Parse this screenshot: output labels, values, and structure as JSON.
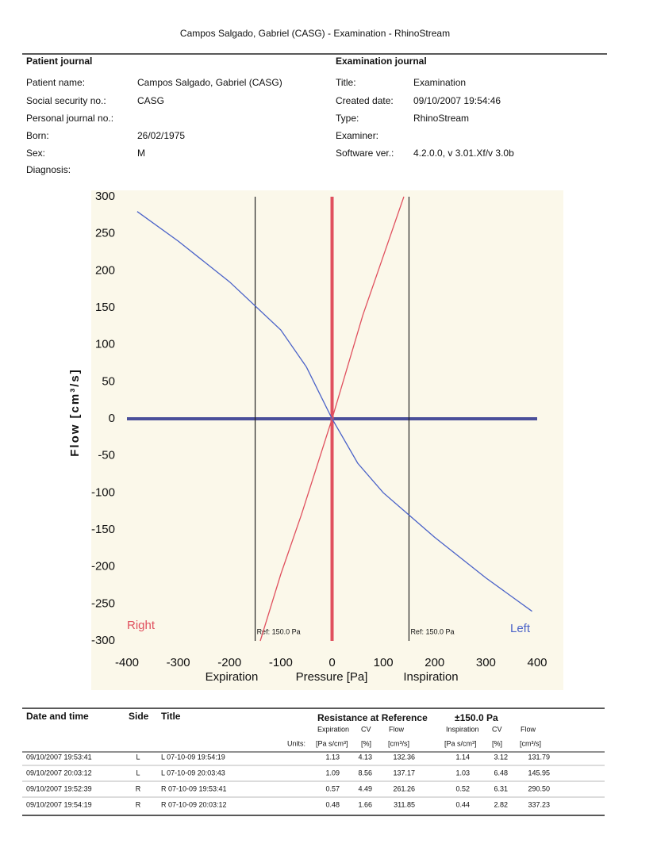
{
  "header": {
    "title": "Campos Salgado, Gabriel (CASG) - Examination - RhinoStream"
  },
  "patient_journal": {
    "heading": "Patient journal",
    "fields": [
      {
        "label": "Patient name:",
        "value": "Campos Salgado, Gabriel (CASG)"
      },
      {
        "label": "Social security no.:",
        "value": "CASG"
      },
      {
        "label": "Personal journal no.:",
        "value": ""
      },
      {
        "label": "Born:",
        "value": "26/02/1975"
      },
      {
        "label": "Sex:",
        "value": "M"
      },
      {
        "label": "Diagnosis:",
        "value": ""
      }
    ]
  },
  "examination_journal": {
    "heading": "Examination journal",
    "fields": [
      {
        "label": "Title:",
        "value": "Examination"
      },
      {
        "label": "Created date:",
        "value": "09/10/2007 19:54:46"
      },
      {
        "label": "Type:",
        "value": "RhinoStream"
      },
      {
        "label": "Examiner:",
        "value": ""
      },
      {
        "label": "Software ver.:",
        "value": "4.2.0.0, v 3.01.Xf/v 3.0b"
      }
    ]
  },
  "chart_data": {
    "type": "line",
    "ylabel": "Flow [cm³/s]",
    "xlabel": "Pressure [Pa]",
    "xlabel_left": "Expiration",
    "xlabel_right": "Inspiration",
    "xlim": [
      -400,
      400
    ],
    "xticks": [
      -400,
      -300,
      -200,
      -100,
      0,
      100,
      200,
      300,
      400
    ],
    "ylim": [
      -300,
      300
    ],
    "yticks": [
      -300,
      -250,
      -200,
      -150,
      -100,
      -50,
      0,
      50,
      100,
      150,
      200,
      250,
      300
    ],
    "reference_lines": [
      {
        "value": -150,
        "label": "Ref: 150.0 Pa"
      },
      {
        "value": 150,
        "label": "Ref: 150.0 Pa"
      }
    ],
    "series": [
      {
        "name": "Right",
        "color": "#e0505e",
        "x": [
          -140,
          -100,
          -60,
          -30,
          0,
          30,
          60,
          100,
          140
        ],
        "values": [
          -300,
          -210,
          -130,
          -65,
          0,
          70,
          140,
          220,
          300
        ]
      },
      {
        "name": "Left",
        "color": "#4a62c8",
        "x": [
          -380,
          -300,
          -200,
          -100,
          -50,
          0,
          50,
          100,
          200,
          300,
          390
        ],
        "values": [
          280,
          240,
          185,
          120,
          70,
          0,
          -60,
          -100,
          -160,
          -215,
          -260
        ]
      }
    ]
  },
  "table": {
    "headers": [
      "Date and time",
      "Side",
      "Title"
    ],
    "resistance_title": "Resistance at Reference",
    "reference": "±150.0 Pa",
    "sub_headers": [
      "Expiration",
      "CV",
      "Flow",
      "Inspiration",
      "CV",
      "Flow"
    ],
    "units_label": "Units:",
    "units": [
      "[Pa s/cm³]",
      "[%]",
      "[cm³/s]",
      "[Pa s/cm³]",
      "[%]",
      "[cm³/s]"
    ],
    "rows": [
      [
        "09/10/2007 19:53:41",
        "L",
        "L 07-10-09 19:54:19",
        "1.13",
        "4.13",
        "132.36",
        "1.14",
        "3.12",
        "131.79"
      ],
      [
        "09/10/2007 20:03:12",
        "L",
        "L 07-10-09 20:03:43",
        "1.09",
        "8.56",
        "137.17",
        "1.03",
        "6.48",
        "145.95"
      ],
      [
        "09/10/2007 19:52:39",
        "R",
        "R 07-10-09 19:53:41",
        "0.57",
        "4.49",
        "261.26",
        "0.52",
        "6.31",
        "290.50"
      ],
      [
        "09/10/2007 19:54:19",
        "R",
        "R 07-10-09 20:03:12",
        "0.48",
        "1.66",
        "311.85",
        "0.44",
        "2.82",
        "337.23"
      ]
    ]
  }
}
